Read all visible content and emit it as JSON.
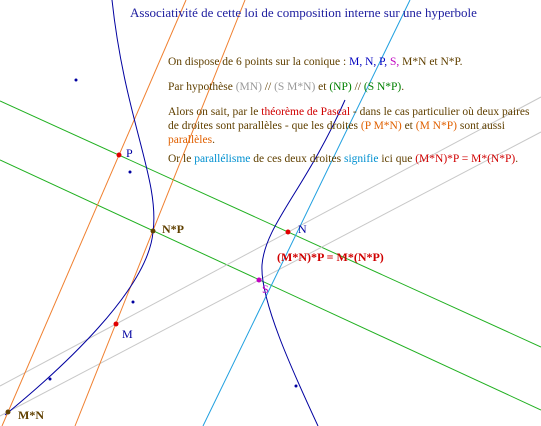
{
  "title": "Associativité de cette loi de composition interne sur une hyperbole",
  "paragraphs": [
    [
      "On dispose de 6 points sur la conique : ",
      "M, N, P,",
      " S,",
      " M*N et N*P."
    ],
    [
      "Par hypothèse ",
      "(MN)",
      " // ",
      "(S M*N)",
      " et ",
      "(NP)",
      " // ",
      "(S N*P)",
      "."
    ],
    [
      "Alors on sait, par le ",
      "théorème de Pascal",
      " - dans le cas particulier où deux paires de droites sont parallèles - que les droites ",
      "(P M*N)",
      " et ",
      "(M N*P)",
      " sont aussi ",
      "parallèles",
      "."
    ],
    [
      "Or le ",
      "parallélisme",
      " de ces deux droites ",
      "signifie",
      " ici que ",
      "(M*N)*P = M*(N*P)",
      "."
    ]
  ],
  "points": {
    "P": "P",
    "NP": "N*P",
    "N": "N",
    "M": "M",
    "S": "S",
    "MN": "M*N"
  },
  "equation_label": "(M*N)*P = M*(N*P)"
}
